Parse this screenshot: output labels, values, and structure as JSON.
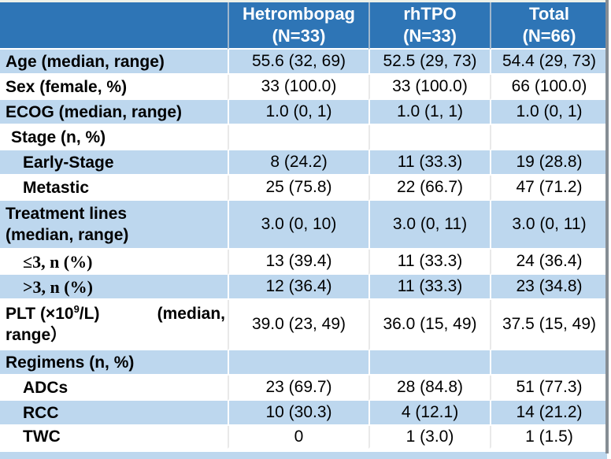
{
  "colors": {
    "header_bg": "#2E75B6",
    "band_bg": "#BDD7EE",
    "header_text": "#FFFFFF",
    "body_text": "#000000"
  },
  "header": {
    "col0": "",
    "col1_line1": "Hetrombopag",
    "col1_line2": "(N=33)",
    "col2_line1": "rhTPO",
    "col2_line2": "(N=33)",
    "col3_line1": "Total",
    "col3_line2": "(N=66)"
  },
  "rows": [
    {
      "label": "Age (median, range)",
      "values": [
        "55.6 (32, 69)",
        "52.5 (29, 73)",
        "54.4 (29, 73)"
      ]
    },
    {
      "label": "Sex (female, %)",
      "values": [
        "33 (100.0)",
        "33 (100.0)",
        "66 (100.0)"
      ]
    },
    {
      "label": "ECOG (median, range)",
      "values": [
        "1.0 (0, 1)",
        "1.0 (1, 1)",
        "1.0 (0, 1)"
      ]
    },
    {
      "label": "Stage (n, %)",
      "values": [
        "",
        "",
        ""
      ]
    },
    {
      "label": "Early-Stage",
      "values": [
        "8 (24.2)",
        "11 (33.3)",
        "19 (28.8)"
      ]
    },
    {
      "label": "Metastic",
      "values": [
        "25 (75.8)",
        "22 (66.7)",
        "47 (71.2)"
      ]
    },
    {
      "label_line1": "Treatment lines",
      "label_line2": "(median, range)",
      "values": [
        "3.0 (0, 10)",
        "3.0 (0, 11)",
        "3.0 (0, 11)"
      ]
    },
    {
      "label": "≤3, n (%)",
      "values": [
        "13 (39.4)",
        "11 (33.3)",
        "24 (36.4)"
      ]
    },
    {
      "label": ">3, n (%)",
      "values": [
        "12 (36.4)",
        "11 (33.3)",
        "23 (34.8)"
      ]
    },
    {
      "label_prefix": "PLT (×10",
      "label_sup": "9",
      "label_mid": "/L)",
      "label_median": "(median,",
      "label_line2": "range）",
      "values": [
        "39.0 (23, 49)",
        "36.0 (15, 49)",
        "37.5 (15, 49)"
      ]
    },
    {
      "label": "Regimens (n, %)",
      "values": [
        "",
        "",
        ""
      ]
    },
    {
      "label": "ADCs",
      "values": [
        "23 (69.7)",
        "28 (84.8)",
        "51 (77.3)"
      ]
    },
    {
      "label": "RCC",
      "values": [
        "10 (30.3)",
        "4 (12.1)",
        "14 (21.2)"
      ]
    },
    {
      "label": "TWC",
      "values": [
        "0",
        "1 (3.0)",
        "1 (1.5)"
      ]
    }
  ]
}
